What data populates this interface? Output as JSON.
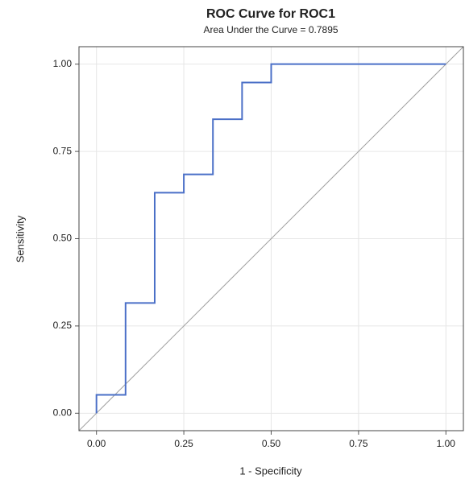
{
  "chart_data": {
    "type": "line",
    "title": "ROC Curve for ROC1",
    "subtitle": "Area Under the Curve = 0.7895",
    "xlabel": "1 - Specificity",
    "ylabel": "Sensitivity",
    "x": [
      0,
      0,
      0.0833,
      0.0833,
      0.1667,
      0.1667,
      0.25,
      0.25,
      0.3333,
      0.3333,
      0.4167,
      0.4167,
      0.5,
      0.5,
      1
    ],
    "series": [
      {
        "color": "#4a6fc7",
        "values": [
          0,
          0.0526,
          0.0526,
          0.3158,
          0.3158,
          0.6316,
          0.6316,
          0.6842,
          0.6842,
          0.8421,
          0.8421,
          0.9474,
          0.9474,
          1,
          1
        ]
      }
    ],
    "xlim": [
      -0.05,
      1.05
    ],
    "ylim": [
      -0.05,
      1.05
    ],
    "xticks": [
      {
        "value": 0,
        "label": "0.00"
      },
      0.25,
      {
        "value": 0.5,
        "label": "0.50"
      },
      0.75,
      {
        "value": 1,
        "label": "1.00"
      }
    ],
    "yticks": [
      {
        "value": 0,
        "label": "0.00"
      },
      0.25,
      {
        "value": 0.5,
        "label": "0.50"
      },
      0.75,
      {
        "value": 1,
        "label": "1.00"
      }
    ],
    "grid": true,
    "diagonal": true,
    "diagonal_color": "#a0a0a0"
  }
}
